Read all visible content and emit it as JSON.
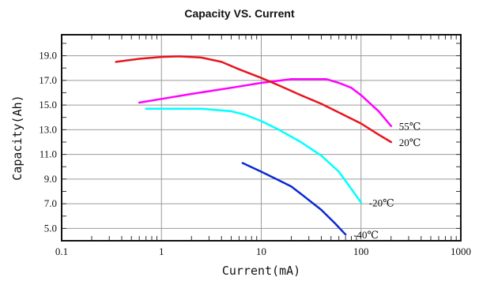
{
  "chart_data": {
    "type": "line",
    "title": "Capacity VS. Current",
    "xlabel": "Current(mA)",
    "ylabel": "Capacity(Ah)",
    "xscale": "log",
    "xlim": [
      0.1,
      1000
    ],
    "ylim": [
      4.0,
      20.7
    ],
    "x_ticks": [
      "0.1",
      "1",
      "10",
      "100",
      "1000"
    ],
    "y_ticks": [
      "5.0",
      "7.0",
      "9.0",
      "11.0",
      "13.0",
      "15.0",
      "17.0",
      "19.0"
    ],
    "grid": true,
    "series": [
      {
        "name": "55℃",
        "color": "#ff00ff",
        "x": [
          0.6,
          1,
          2,
          5,
          10,
          20,
          25,
          45,
          60,
          80,
          100,
          150,
          200
        ],
        "y": [
          15.2,
          15.5,
          15.9,
          16.4,
          16.8,
          17.1,
          17.1,
          17.1,
          16.8,
          16.4,
          15.8,
          14.5,
          13.3
        ]
      },
      {
        "name": "20℃",
        "color": "#e8141e",
        "x": [
          0.35,
          0.6,
          1,
          1.5,
          2.5,
          4,
          6,
          10,
          15,
          25,
          40,
          60,
          100,
          150,
          200
        ],
        "y": [
          18.5,
          18.75,
          18.9,
          18.95,
          18.85,
          18.5,
          17.9,
          17.2,
          16.6,
          15.8,
          15.1,
          14.4,
          13.5,
          12.6,
          12.0
        ]
      },
      {
        "name": "-20℃",
        "color": "#00ffff",
        "x": [
          0.7,
          1,
          2.5,
          5,
          7,
          10,
          15,
          25,
          40,
          60,
          80,
          100
        ],
        "y": [
          14.7,
          14.7,
          14.7,
          14.5,
          14.2,
          13.7,
          13.0,
          12.0,
          10.9,
          9.6,
          8.2,
          7.1
        ]
      },
      {
        "name": "-40℃",
        "color": "#0a28d2",
        "x": [
          6.5,
          10,
          15,
          20,
          25,
          40,
          55,
          70
        ],
        "y": [
          10.3,
          9.6,
          8.9,
          8.4,
          7.8,
          6.5,
          5.4,
          4.5
        ]
      }
    ]
  }
}
